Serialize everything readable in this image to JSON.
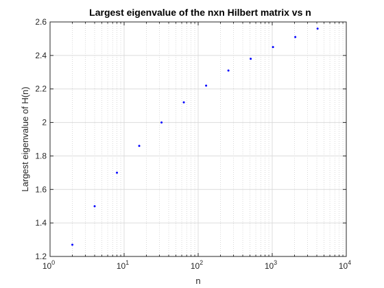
{
  "chart_data": {
    "type": "scatter",
    "title": "Largest eigenvalue of the nxn Hilbert matrix vs n",
    "xlabel": "n",
    "ylabel": "Largest eigenvalue of H(n)",
    "xscale": "log",
    "xlim": [
      1,
      10000
    ],
    "ylim": [
      1.2,
      2.6
    ],
    "grid": true,
    "minor_grid": true,
    "marker_color": "#0000ff",
    "x_ticks": [
      1,
      10,
      100,
      1000,
      10000
    ],
    "x_tick_labels": [
      {
        "base": "10",
        "exp": "0"
      },
      {
        "base": "10",
        "exp": "1"
      },
      {
        "base": "10",
        "exp": "2"
      },
      {
        "base": "10",
        "exp": "3"
      },
      {
        "base": "10",
        "exp": "4"
      }
    ],
    "y_ticks": [
      1.2,
      1.4,
      1.6,
      1.8,
      2.0,
      2.2,
      2.4,
      2.6
    ],
    "y_tick_labels": [
      "1.2",
      "1.4",
      "1.6",
      "1.8",
      "2",
      "2.2",
      "2.4",
      "2.6"
    ],
    "x": [
      2,
      4,
      8,
      16,
      32,
      64,
      128,
      256,
      512,
      1024,
      2048,
      4096
    ],
    "y": [
      1.27,
      1.5,
      1.7,
      1.86,
      2.0,
      2.12,
      2.22,
      2.31,
      2.38,
      2.45,
      2.51,
      2.56
    ]
  }
}
